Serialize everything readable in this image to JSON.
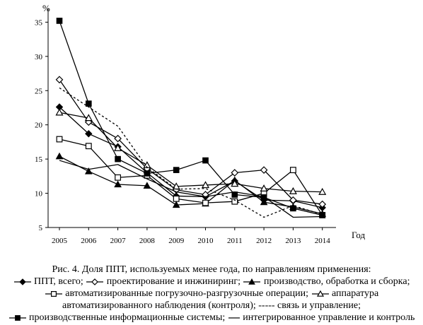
{
  "chart_data": {
    "type": "line",
    "ylabel": "%",
    "xlabel": "Год",
    "ylim": [
      5,
      37
    ],
    "yticks": [
      5,
      10,
      15,
      20,
      25,
      30,
      35
    ],
    "x": [
      "2005",
      "2006",
      "2007",
      "2008",
      "2009",
      "2010",
      "2011",
      "2012",
      "2013",
      "2014"
    ],
    "grid": false,
    "series": [
      {
        "name": "ППТ, всего",
        "marker": "diamond-filled",
        "dash": "solid",
        "values": [
          22.6,
          18.7,
          16.8,
          13.0,
          9.6,
          9.5,
          11.8,
          9.0,
          8.9,
          7.9
        ]
      },
      {
        "name": "проектирование и инжиниринг",
        "marker": "diamond-open",
        "dash": "solid",
        "values": [
          26.6,
          20.4,
          18.0,
          13.6,
          10.5,
          9.8,
          13.0,
          13.4,
          9.0,
          8.4
        ]
      },
      {
        "name": "производство, обработка и сборка",
        "marker": "triangle-filled",
        "dash": "solid",
        "values": [
          15.4,
          13.2,
          11.3,
          11.1,
          8.3,
          8.5,
          11.9,
          8.7,
          8.0,
          7.0
        ]
      },
      {
        "name": "автоматизированные погрузочно-разгрузочные операции",
        "marker": "square-open",
        "dash": "solid",
        "values": [
          17.9,
          16.9,
          12.3,
          12.6,
          9.2,
          8.6,
          8.8,
          10.0,
          13.4,
          6.8
        ]
      },
      {
        "name": "аппаратура автоматизированного наблюдения (контроля)",
        "marker": "triangle-open",
        "dash": "solid",
        "values": [
          21.8,
          21.0,
          16.6,
          14.1,
          11.0,
          11.2,
          11.4,
          10.7,
          10.3,
          10.2
        ]
      },
      {
        "name": "связь и управление",
        "marker": "none",
        "dash": "dashed",
        "values": [
          25.4,
          22.6,
          19.8,
          13.8,
          10.6,
          10.7,
          9.0,
          6.5,
          8.2,
          6.9
        ]
      },
      {
        "name": "производственные информационные системы",
        "marker": "square-filled",
        "dash": "solid",
        "values": [
          35.2,
          23.1,
          15.0,
          12.9,
          13.4,
          14.8,
          9.8,
          9.4,
          7.8,
          6.8
        ]
      },
      {
        "name": "интегрированное управление и контроль",
        "marker": "none",
        "dash": "solid",
        "values": [
          14.8,
          13.5,
          14.2,
          12.1,
          10.2,
          9.5,
          10.2,
          9.5,
          6.5,
          6.6
        ]
      }
    ]
  },
  "caption": {
    "title": "Рис. 4. Доля ППТ, используемых менее года, по направлениям применения:",
    "line1": [
      {
        "marker": "diamond-filled",
        "text": " ППТ, всего; "
      },
      {
        "marker": "diamond-open",
        "text": " проектирование и инжиниринг; "
      },
      {
        "marker": "triangle-filled",
        "text": " производство, обработка и сборка;"
      }
    ],
    "line2": [
      {
        "marker": "square-open",
        "text": " автоматизированные погрузочно-разгрузочные операции; "
      },
      {
        "marker": "triangle-open",
        "text": " аппаратура"
      }
    ],
    "line3": "автоматизированного наблюдения (контроля); ----- связь и управление;",
    "line4": [
      {
        "marker": "square-filled",
        "text": " производственные информационные системы; ",
        "short": false
      },
      {
        "marker": "none",
        "text": " интегрированное управление и контроль",
        "short": true
      }
    ]
  }
}
